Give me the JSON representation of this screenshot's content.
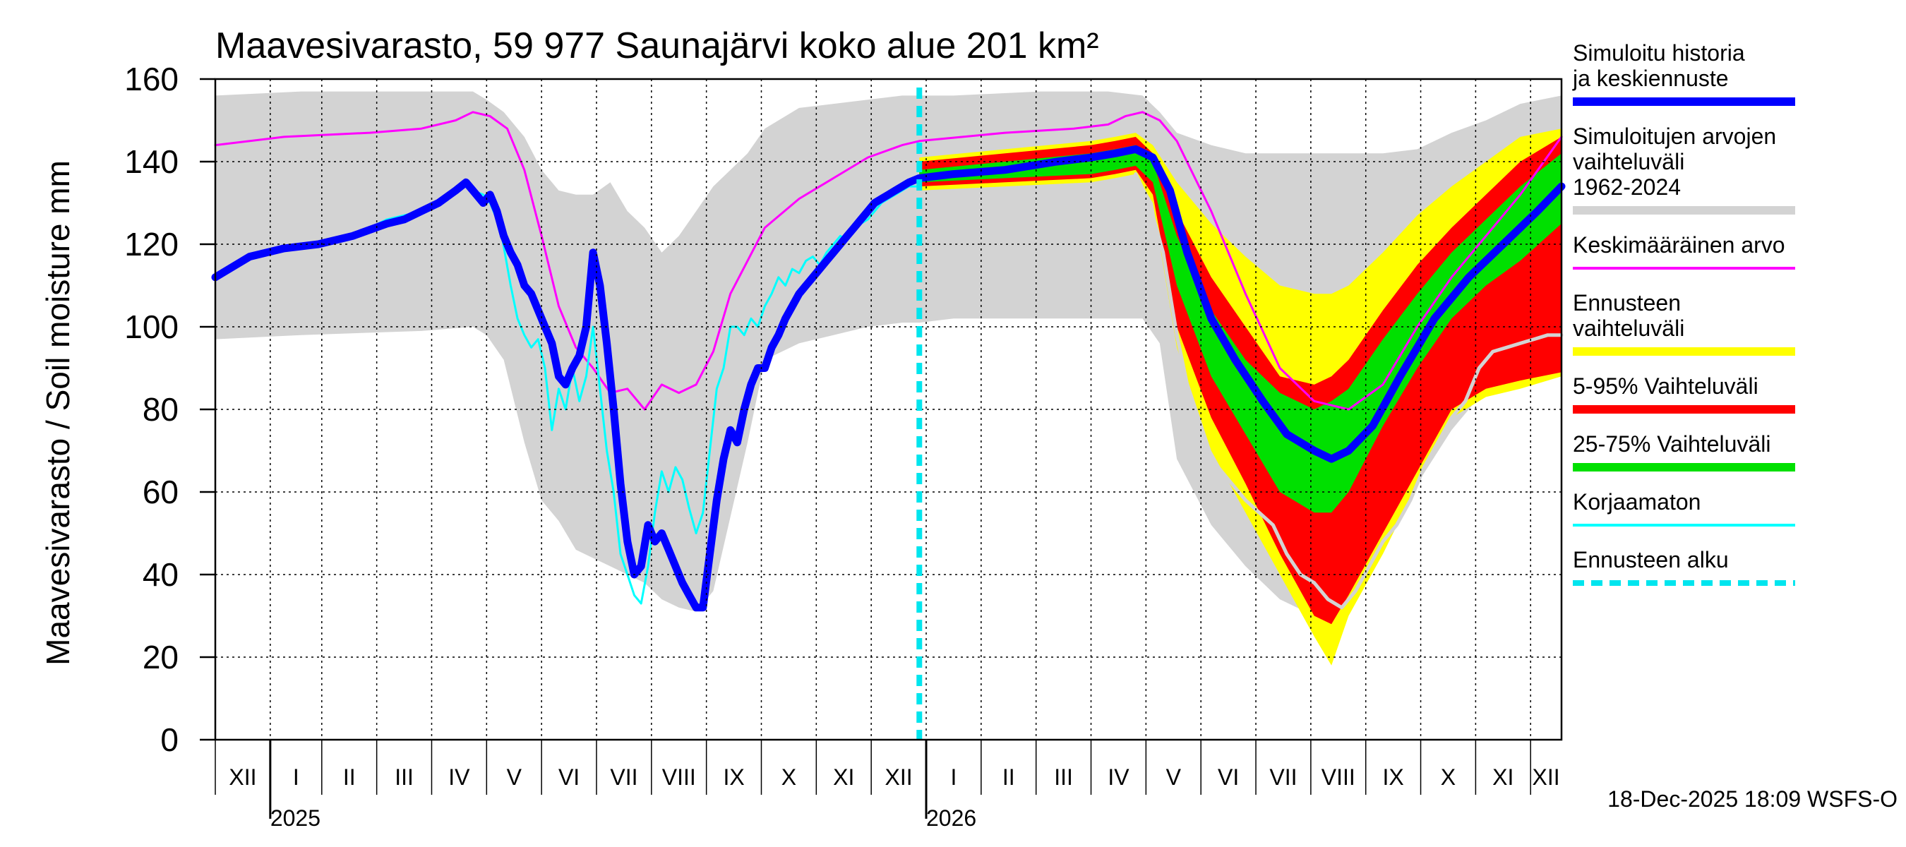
{
  "chart_data": {
    "type": "area",
    "title": "Maavesivarasto, 59 977 Saunajärvi koko alue 201 km²",
    "ylabel": "Maavesivarasto / Soil moisture   mm",
    "ylim": [
      0,
      160
    ],
    "yticks": [
      0,
      20,
      40,
      60,
      80,
      100,
      120,
      140,
      160
    ],
    "grid": true,
    "x_range_days": [
      0,
      392
    ],
    "forecast_start_day": 205,
    "months": [
      {
        "label": "XII",
        "start": 0,
        "end": 16
      },
      {
        "label": "I",
        "start": 16,
        "end": 31
      },
      {
        "label": "II",
        "start": 31,
        "end": 47
      },
      {
        "label": "III",
        "start": 47,
        "end": 63
      },
      {
        "label": "IV",
        "start": 63,
        "end": 79
      },
      {
        "label": "V",
        "start": 79,
        "end": 95
      },
      {
        "label": "VI",
        "start": 95,
        "end": 111
      },
      {
        "label": "VII",
        "start": 111,
        "end": 127
      },
      {
        "label": "VIII",
        "start": 127,
        "end": 143
      },
      {
        "label": "IX",
        "start": 143,
        "end": 159
      },
      {
        "label": "X",
        "start": 159,
        "end": 175
      },
      {
        "label": "XI",
        "start": 175,
        "end": 191
      },
      {
        "label": "XII",
        "start": 191,
        "end": 207
      },
      {
        "label": "I",
        "start": 207,
        "end": 223
      },
      {
        "label": "II",
        "start": 223,
        "end": 239
      },
      {
        "label": "III",
        "start": 239,
        "end": 255
      },
      {
        "label": "IV",
        "start": 255,
        "end": 271
      },
      {
        "label": "V",
        "start": 271,
        "end": 287
      },
      {
        "label": "VI",
        "start": 287,
        "end": 303
      },
      {
        "label": "VII",
        "start": 303,
        "end": 319
      },
      {
        "label": "VIII",
        "start": 319,
        "end": 335
      },
      {
        "label": "IX",
        "start": 335,
        "end": 351
      },
      {
        "label": "X",
        "start": 351,
        "end": 367
      },
      {
        "label": "XI",
        "start": 367,
        "end": 383
      },
      {
        "label": "XII",
        "start": 383,
        "end": 392
      }
    ],
    "years": [
      {
        "label": "2025",
        "day": 16
      },
      {
        "label": "2026",
        "day": 207
      }
    ],
    "series": [
      {
        "name": "Simuloitujen arvojen vaihteluväli 1962-2024",
        "kind": "band",
        "color": "#d3d3d3",
        "x": [
          0,
          25,
          60,
          75,
          79,
          84,
          90,
          95,
          100,
          105,
          110,
          115,
          120,
          125,
          130,
          135,
          140,
          145,
          150,
          155,
          160,
          170,
          180,
          190,
          200,
          205,
          215,
          240,
          260,
          270,
          275,
          280,
          290,
          300,
          310,
          320,
          330,
          340,
          350,
          360,
          370,
          380,
          392
        ],
        "upper": [
          156,
          157,
          157,
          157,
          155,
          152,
          146,
          138,
          133,
          132,
          132,
          135,
          128,
          124,
          118,
          122,
          128,
          134,
          138,
          142,
          148,
          153,
          154,
          155,
          156,
          156,
          156,
          157,
          157,
          156,
          152,
          147,
          144,
          142,
          142,
          142,
          142,
          142,
          143,
          147,
          150,
          154,
          156
        ],
        "lower": [
          97,
          98,
          99,
          100,
          98,
          92,
          72,
          58,
          53,
          46,
          44,
          42,
          40,
          38,
          34,
          32,
          31,
          36,
          54,
          72,
          92,
          96,
          98,
          100,
          101,
          101,
          102,
          102,
          102,
          102,
          96,
          68,
          52,
          42,
          34,
          30,
          33,
          45,
          62,
          75,
          85,
          88,
          90
        ]
      },
      {
        "name": "Ennusteen vaihteluväli",
        "kind": "band",
        "color": "#ffff00",
        "x": [
          205,
          230,
          255,
          262,
          268,
          273,
          280,
          290,
          300,
          310,
          320,
          325,
          330,
          340,
          350,
          360,
          370,
          380,
          392
        ],
        "upper": [
          141,
          143,
          145,
          146,
          147,
          144,
          135,
          125,
          117,
          110,
          108,
          108,
          110,
          118,
          127,
          134,
          140,
          146,
          148
        ],
        "lower": [
          133,
          134,
          135,
          136,
          137,
          130,
          95,
          70,
          55,
          40,
          25,
          18,
          30,
          45,
          62,
          78,
          83,
          85,
          88
        ]
      },
      {
        "name": "5-95% Vaihteluväli",
        "kind": "band",
        "color": "#ff0000",
        "x": [
          205,
          230,
          255,
          262,
          268,
          273,
          280,
          290,
          300,
          310,
          320,
          325,
          330,
          340,
          350,
          360,
          370,
          380,
          392
        ],
        "upper": [
          140,
          142,
          144,
          145,
          146,
          142,
          128,
          112,
          100,
          88,
          86,
          88,
          92,
          104,
          115,
          124,
          132,
          140,
          146
        ],
        "lower": [
          134,
          135,
          136,
          137,
          138,
          132,
          100,
          78,
          62,
          45,
          30,
          28,
          35,
          50,
          65,
          80,
          85,
          87,
          89
        ]
      },
      {
        "name": "25-75% Vaihteluväli",
        "kind": "band",
        "color": "#00e000",
        "x": [
          205,
          230,
          255,
          262,
          268,
          273,
          280,
          290,
          300,
          310,
          320,
          325,
          330,
          340,
          350,
          360,
          370,
          380,
          392
        ],
        "upper": [
          138,
          140,
          142,
          143,
          144,
          140,
          122,
          104,
          92,
          84,
          80,
          82,
          85,
          97,
          108,
          118,
          126,
          134,
          142
        ],
        "lower": [
          135,
          136,
          137,
          138,
          139,
          135,
          110,
          88,
          74,
          60,
          55,
          55,
          60,
          76,
          90,
          102,
          110,
          116,
          125
        ]
      },
      {
        "name": "Keskimääräinen arvo",
        "kind": "line",
        "color": "#ff00ff",
        "width": 3,
        "x": [
          0,
          20,
          45,
          60,
          70,
          75,
          80,
          85,
          90,
          95,
          100,
          105,
          110,
          115,
          120,
          125,
          130,
          135,
          140,
          145,
          150,
          160,
          170,
          180,
          190,
          200,
          205,
          230,
          250,
          260,
          265,
          270,
          275,
          280,
          290,
          300,
          310,
          320,
          330,
          340,
          350,
          360,
          370,
          380,
          392
        ],
        "y": [
          144,
          146,
          147,
          148,
          150,
          152,
          151,
          148,
          138,
          122,
          105,
          95,
          90,
          84,
          85,
          80,
          86,
          84,
          86,
          94,
          108,
          124,
          131,
          136,
          141,
          144,
          145,
          147,
          148,
          149,
          151,
          152,
          150,
          145,
          128,
          108,
          90,
          82,
          80,
          86,
          100,
          112,
          122,
          132,
          146
        ]
      },
      {
        "name": "Korjaamaton",
        "kind": "line",
        "color": "#00ffff",
        "width": 3,
        "x": [
          0,
          10,
          20,
          30,
          40,
          50,
          55,
          60,
          65,
          70,
          73,
          75,
          78,
          80,
          83,
          86,
          88,
          90,
          92,
          94,
          96,
          98,
          100,
          102,
          104,
          106,
          108,
          110,
          112,
          114,
          116,
          118,
          120,
          122,
          124,
          126,
          128,
          130,
          132,
          134,
          136,
          138,
          140,
          142,
          144,
          146,
          148,
          150,
          152,
          154,
          156,
          158,
          160,
          162,
          164,
          166,
          168,
          170,
          172,
          174,
          176,
          178,
          180,
          182,
          184,
          186,
          188,
          190,
          192,
          194,
          196,
          198,
          200,
          202,
          205
        ],
        "y": [
          112,
          117,
          119,
          120,
          122,
          126,
          127,
          128,
          130,
          133,
          134,
          133,
          132,
          130,
          124,
          110,
          102,
          98,
          95,
          97,
          90,
          75,
          85,
          80,
          90,
          82,
          88,
          100,
          85,
          70,
          60,
          45,
          40,
          35,
          33,
          42,
          55,
          65,
          60,
          66,
          63,
          56,
          50,
          55,
          70,
          85,
          90,
          100,
          100,
          98,
          102,
          100,
          105,
          108,
          112,
          110,
          114,
          113,
          116,
          117,
          115,
          118,
          120,
          122,
          121,
          124,
          125,
          126,
          128,
          130,
          131,
          132,
          133,
          134,
          134
        ]
      },
      {
        "name": "Simuloitu historia ja keskiennuste",
        "kind": "line",
        "color": "#0000ff",
        "width": 11,
        "x": [
          0,
          10,
          20,
          30,
          40,
          50,
          55,
          60,
          65,
          70,
          73,
          75,
          78,
          80,
          82,
          84,
          86,
          88,
          90,
          92,
          94,
          96,
          98,
          100,
          102,
          104,
          106,
          108,
          110,
          112,
          114,
          116,
          118,
          120,
          122,
          124,
          126,
          128,
          130,
          132,
          134,
          136,
          138,
          140,
          142,
          144,
          146,
          148,
          150,
          152,
          154,
          156,
          158,
          160,
          162,
          164,
          166,
          168,
          170,
          172,
          174,
          176,
          178,
          180,
          182,
          184,
          186,
          188,
          190,
          192,
          194,
          196,
          198,
          200,
          202,
          205,
          215,
          230,
          245,
          255,
          262,
          268,
          273,
          278,
          283,
          290,
          297,
          305,
          312,
          320,
          325,
          330,
          337,
          345,
          355,
          365,
          375,
          385,
          392
        ],
        "y": [
          112,
          117,
          119,
          120,
          122,
          125,
          126,
          128,
          130,
          133,
          135,
          133,
          130,
          132,
          128,
          122,
          118,
          115,
          110,
          108,
          104,
          100,
          96,
          88,
          86,
          90,
          93,
          100,
          118,
          110,
          96,
          80,
          62,
          48,
          40,
          42,
          52,
          48,
          50,
          46,
          42,
          38,
          35,
          32,
          32,
          45,
          58,
          68,
          75,
          72,
          80,
          86,
          90,
          90,
          95,
          98,
          102,
          105,
          108,
          110,
          112,
          114,
          116,
          118,
          120,
          122,
          124,
          126,
          128,
          130,
          131,
          132,
          133,
          134,
          135,
          136,
          137,
          138,
          140,
          141,
          142,
          143,
          141,
          133,
          118,
          102,
          92,
          82,
          74,
          70,
          68,
          70,
          76,
          88,
          102,
          112,
          120,
          128,
          134
        ]
      },
      {
        "name": "",
        "kind": "line",
        "color": "#d3d3d3",
        "width": 5,
        "x": [
          268,
          272,
          276,
          280,
          284,
          288,
          292,
          296,
          300,
          304,
          308,
          312,
          316,
          320,
          324,
          328,
          332,
          336,
          340,
          344,
          348,
          352,
          356,
          360,
          364,
          368,
          372,
          376,
          380,
          384,
          388,
          392
        ],
        "y": [
          137,
          130,
          118,
          98,
          82,
          72,
          66,
          62,
          58,
          55,
          52,
          45,
          40,
          38,
          34,
          32,
          36,
          42,
          48,
          52,
          58,
          66,
          72,
          78,
          82,
          90,
          94,
          95,
          96,
          97,
          98,
          98
        ]
      }
    ],
    "legend": [
      {
        "label": "Simuloitu historia ja keskiennuste",
        "color": "#0000ff",
        "style": "thick"
      },
      {
        "label": "Simuloitujen arvojen vaihteluväli 1962-2024",
        "color": "#d3d3d3",
        "style": "thick"
      },
      {
        "label": "Keskimääräinen arvo",
        "color": "#ff00ff",
        "style": "thin"
      },
      {
        "label": "Ennusteen vaihteluväli",
        "color": "#ffff00",
        "style": "thick"
      },
      {
        "label": "5-95% Vaihteluväli",
        "color": "#ff0000",
        "style": "thick"
      },
      {
        "label": "25-75% Vaihteluväli",
        "color": "#00e000",
        "style": "thick"
      },
      {
        "label": "Korjaamaton",
        "color": "#00ffff",
        "style": "thin"
      },
      {
        "label": "Ennusteen alku",
        "color": "#00e5ee",
        "style": "dashed"
      }
    ],
    "forecast_line_color": "#00e5ee",
    "footer": "18-Dec-2025 18:09 WSFS-O"
  }
}
